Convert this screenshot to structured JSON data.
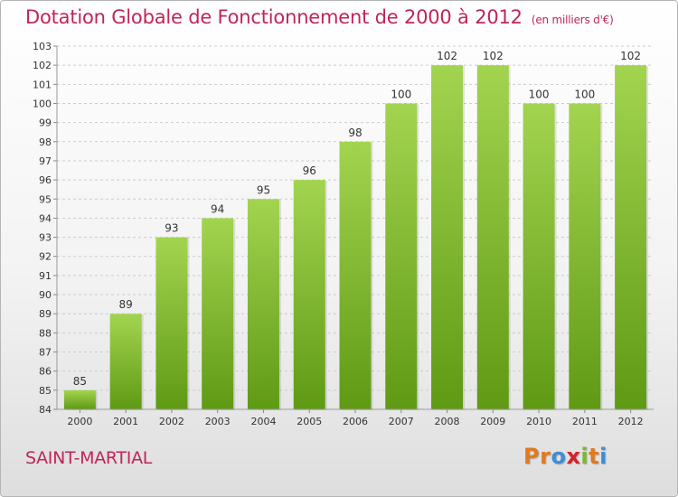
{
  "title": "Dotation Globale de Fonctionnement de 2000 à 2012",
  "unit_label": "(en milliers d'€)",
  "commune": "SAINT-MARTIAL",
  "logo": {
    "letters": [
      "P",
      "r",
      "o",
      "x",
      "i",
      "t",
      "i"
    ],
    "colors": [
      "#e07a1f",
      "#e07a1f",
      "#3b8fd6",
      "#d0232a",
      "#7ab82e",
      "#e07a1f",
      "#3b8fd6"
    ]
  },
  "colors": {
    "title": "#c0255a",
    "bar_light": "#9fd14a",
    "bar_dark": "#5f9a14"
  },
  "chart_data": {
    "type": "bar",
    "categories": [
      "2000",
      "2001",
      "2002",
      "2003",
      "2004",
      "2005",
      "2006",
      "2007",
      "2008",
      "2009",
      "2010",
      "2011",
      "2012"
    ],
    "values": [
      85,
      89,
      93,
      94,
      95,
      96,
      98,
      100,
      102,
      102,
      100,
      100,
      102
    ],
    "title": "Dotation Globale de Fonctionnement de 2000 à 2012",
    "ylim": [
      84,
      103
    ],
    "yticks": [
      84,
      85,
      86,
      87,
      88,
      89,
      90,
      91,
      92,
      93,
      94,
      95,
      96,
      97,
      98,
      99,
      100,
      101,
      102,
      103
    ],
    "grid": true
  }
}
